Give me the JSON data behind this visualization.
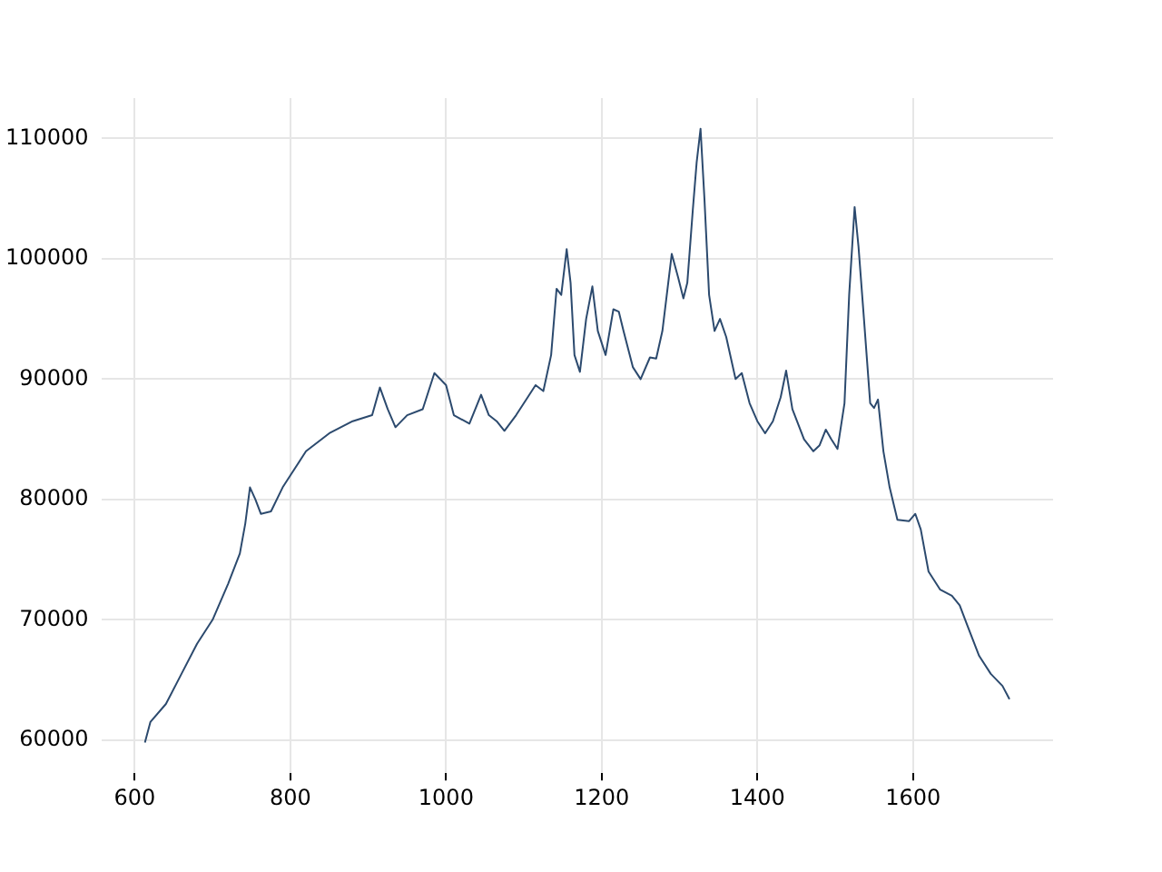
{
  "chart_data": {
    "type": "line",
    "x": [
      613,
      620,
      640,
      660,
      680,
      700,
      720,
      735,
      742,
      748,
      755,
      762,
      775,
      790,
      800,
      820,
      850,
      880,
      905,
      915,
      925,
      935,
      950,
      970,
      985,
      1000,
      1010,
      1030,
      1045,
      1055,
      1065,
      1075,
      1090,
      1105,
      1115,
      1125,
      1135,
      1142,
      1148,
      1155,
      1160,
      1165,
      1172,
      1180,
      1188,
      1195,
      1205,
      1215,
      1222,
      1228,
      1240,
      1250,
      1262,
      1270,
      1278,
      1290,
      1298,
      1305,
      1310,
      1317,
      1322,
      1327,
      1332,
      1338,
      1345,
      1352,
      1360,
      1372,
      1380,
      1390,
      1400,
      1410,
      1420,
      1430,
      1437,
      1445,
      1460,
      1472,
      1480,
      1488,
      1495,
      1503,
      1512,
      1518,
      1525,
      1530,
      1537,
      1545,
      1550,
      1555,
      1562,
      1570,
      1580,
      1595,
      1603,
      1610,
      1620,
      1635,
      1650,
      1660,
      1670,
      1685,
      1700,
      1715,
      1724
    ],
    "series": [
      {
        "color": "#2c4a6e",
        "values": [
          59800,
          61500,
          63000,
          65500,
          68000,
          70000,
          73000,
          75500,
          78000,
          81000,
          80000,
          78800,
          79000,
          81000,
          82000,
          84000,
          85500,
          86500,
          87000,
          89300,
          87500,
          86000,
          87000,
          87500,
          90500,
          89500,
          87000,
          86300,
          88700,
          87000,
          86500,
          85700,
          87000,
          88500,
          89500,
          89000,
          92000,
          97500,
          97000,
          100800,
          98000,
          92000,
          90600,
          95000,
          97700,
          94000,
          92000,
          95800,
          95600,
          94000,
          91000,
          90000,
          91800,
          91700,
          94000,
          100400,
          98500,
          96700,
          98000,
          104000,
          108000,
          110800,
          105000,
          97000,
          94000,
          95000,
          93500,
          90000,
          90500,
          88000,
          86500,
          85500,
          86500,
          88500,
          90700,
          87500,
          85000,
          84000,
          84500,
          85800,
          85000,
          84200,
          88000,
          97000,
          104300,
          101000,
          95000,
          88000,
          87600,
          88300,
          84000,
          81000,
          78300,
          78200,
          78800,
          77500,
          74000,
          72500,
          72000,
          71200,
          69500,
          67000,
          65500,
          64500,
          63400
        ]
      }
    ],
    "xlim": [
      557,
      1780
    ],
    "xticks": [
      600,
      800,
      1000,
      1200,
      1400,
      1600
    ],
    "ylim": [
      57250,
      113350
    ],
    "yticks": [
      60000,
      70000,
      80000,
      90000,
      100000,
      110000
    ],
    "grid": true,
    "legend": false,
    "marker": "none",
    "line_style": "solid"
  }
}
